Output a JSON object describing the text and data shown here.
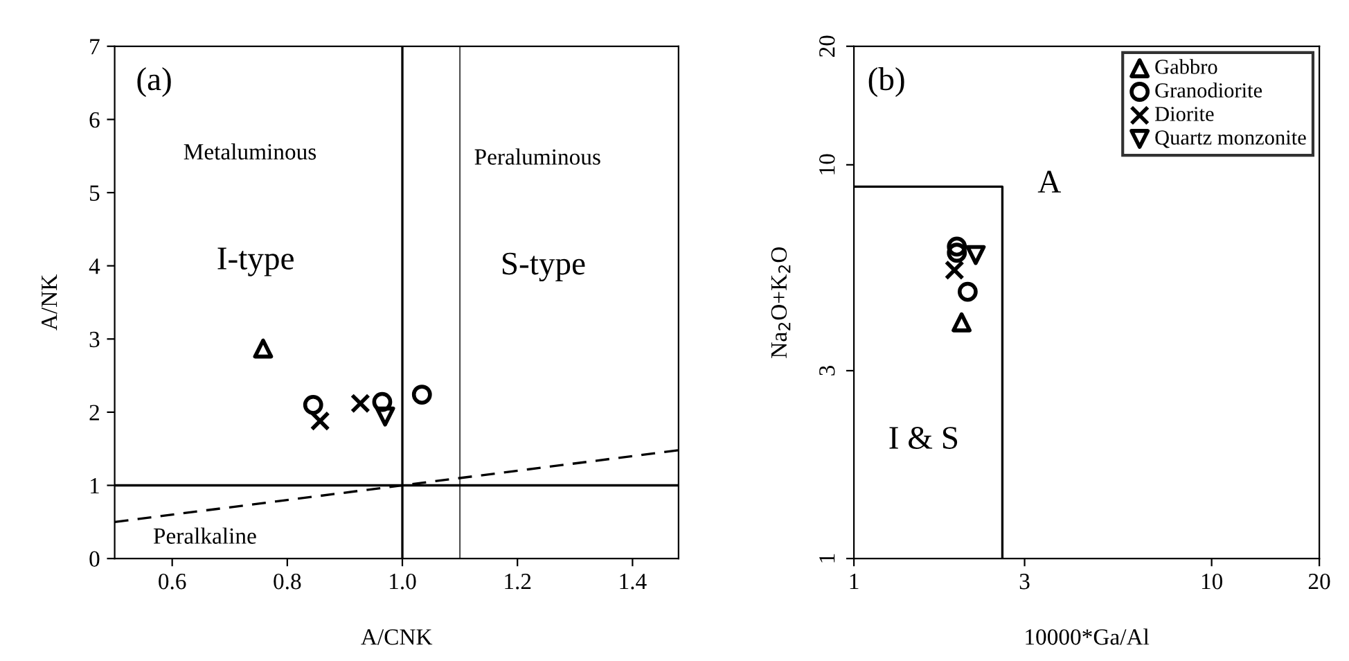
{
  "chart_data": [
    {
      "type": "scatter",
      "xlabel": "A/CNK",
      "ylabel": "A/NK",
      "xlim": [
        0.5,
        1.48
      ],
      "ylim": [
        0,
        7
      ],
      "xticks": [
        {
          "value": 0.6,
          "label": "0.6"
        },
        {
          "value": 0.8,
          "label": "0.8"
        },
        {
          "value": 1.0,
          "label": "1.0"
        },
        {
          "value": 1.2,
          "label": "1.2"
        },
        {
          "value": 1.4,
          "label": "1.4"
        }
      ],
      "yticks": [
        0,
        1,
        2,
        3,
        4,
        5,
        6,
        7
      ],
      "grid": false,
      "legend": false,
      "series": [
        {
          "marker": "triangle",
          "color": "#000000",
          "x": [
            0.758
          ],
          "values": [
            2.87
          ]
        },
        {
          "marker": "circle",
          "color": "#000000",
          "x": [
            0.845,
            0.965,
            1.034
          ],
          "values": [
            2.1,
            2.14,
            2.24
          ]
        },
        {
          "marker": "cross",
          "color": "#000000",
          "x": [
            0.857,
            0.927
          ],
          "values": [
            1.88,
            2.12
          ]
        },
        {
          "marker": "triangle_down",
          "color": "#000000",
          "x": [
            0.97
          ],
          "values": [
            1.94
          ]
        },
        {
          "type": "line",
          "line_style": "dashed",
          "color": "#000000",
          "x": [
            0.5,
            1.48
          ],
          "values": [
            0.5,
            1.48
          ]
        }
      ],
      "ref_lines": [
        {
          "axis": "x",
          "value": 1.0,
          "color": "#000000"
        },
        {
          "axis": "x",
          "value": 1.1,
          "color": "#555555"
        },
        {
          "axis": "y",
          "value": 1,
          "color": "#000000"
        }
      ],
      "annotations": [
        "(a)",
        "Metaluminous",
        "Peraluminous",
        "I-type",
        "S-type",
        "Peralkaline"
      ]
    },
    {
      "type": "scatter",
      "xlabel": "10000*Ga/Al",
      "ylabel": "Na$_{2}$O+K$_{2}$O",
      "log": "xy",
      "xlim": [
        1,
        20
      ],
      "ylim": [
        1,
        20
      ],
      "xticks": [
        1,
        3,
        10,
        20
      ],
      "yticks": [
        1,
        3,
        10,
        20
      ],
      "grid": false,
      "legend": "top right",
      "series": [
        {
          "name": "Gabbro",
          "marker": "triangle",
          "color": "#000000",
          "x": [
            2.0
          ],
          "values": [
            3.98
          ]
        },
        {
          "name": "Granodiorite",
          "marker": "circle",
          "color": "#000000",
          "x": [
            1.94,
            1.94,
            2.08
          ],
          "values": [
            6.2,
            5.98,
            4.76
          ]
        },
        {
          "name": "Diorite",
          "marker": "cross",
          "color": "#000000",
          "x": [
            1.91
          ],
          "values": [
            5.4
          ]
        },
        {
          "name": "Quartz monzonite",
          "marker": "triangle_down",
          "color": "#000000",
          "x": [
            2.19
          ],
          "values": [
            5.9
          ]
        },
        {
          "type": "line",
          "line_style": "solid",
          "color": "#000000",
          "x": [
            1,
            2.6,
            2.6
          ],
          "values": [
            8.8,
            8.8,
            1
          ]
        }
      ],
      "annotations": [
        "(b)",
        "A",
        "I & S"
      ]
    }
  ]
}
